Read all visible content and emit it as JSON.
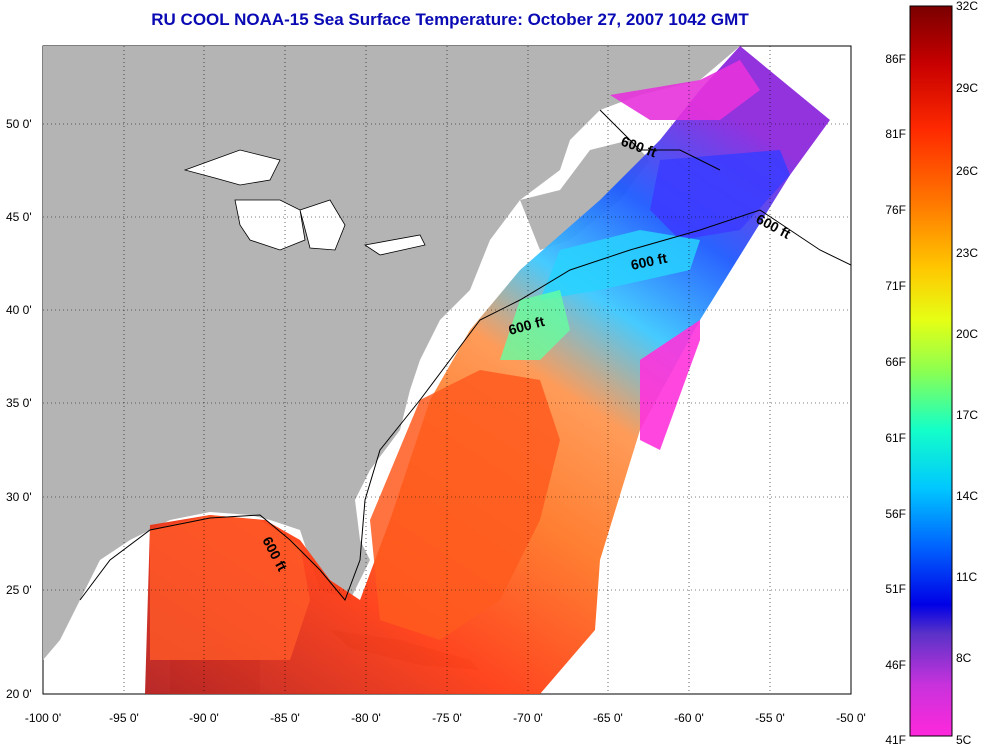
{
  "title": "RU COOL  NOAA-15  Sea Surface Temperature:  October 27, 2007 1042 GMT",
  "axes": {
    "lat_labels": [
      "50 0'",
      "45 0'",
      "40 0'",
      "35 0'",
      "30 0'",
      "25 0'",
      "20 0'"
    ],
    "lon_labels": [
      "-100 0'",
      "-95 0'",
      "-90 0'",
      "-85 0'",
      "-80 0'",
      "-75 0'",
      "-70 0'",
      "-65 0'",
      "-60 0'",
      "-55 0'",
      "-50 0'"
    ]
  },
  "contour_label": "600 ft",
  "colorbar": {
    "fahrenheit": [
      "86F",
      "81F",
      "76F",
      "71F",
      "66F",
      "61F",
      "56F",
      "51F",
      "46F",
      "41F"
    ],
    "celsius": [
      "32C",
      "29C",
      "26C",
      "23C",
      "20C",
      "17C",
      "14C",
      "11C",
      "8C",
      "5C"
    ]
  },
  "colors": {
    "title": "#0a0ab4",
    "land": "#b4b4b4",
    "no_data": "#ffffff"
  }
}
